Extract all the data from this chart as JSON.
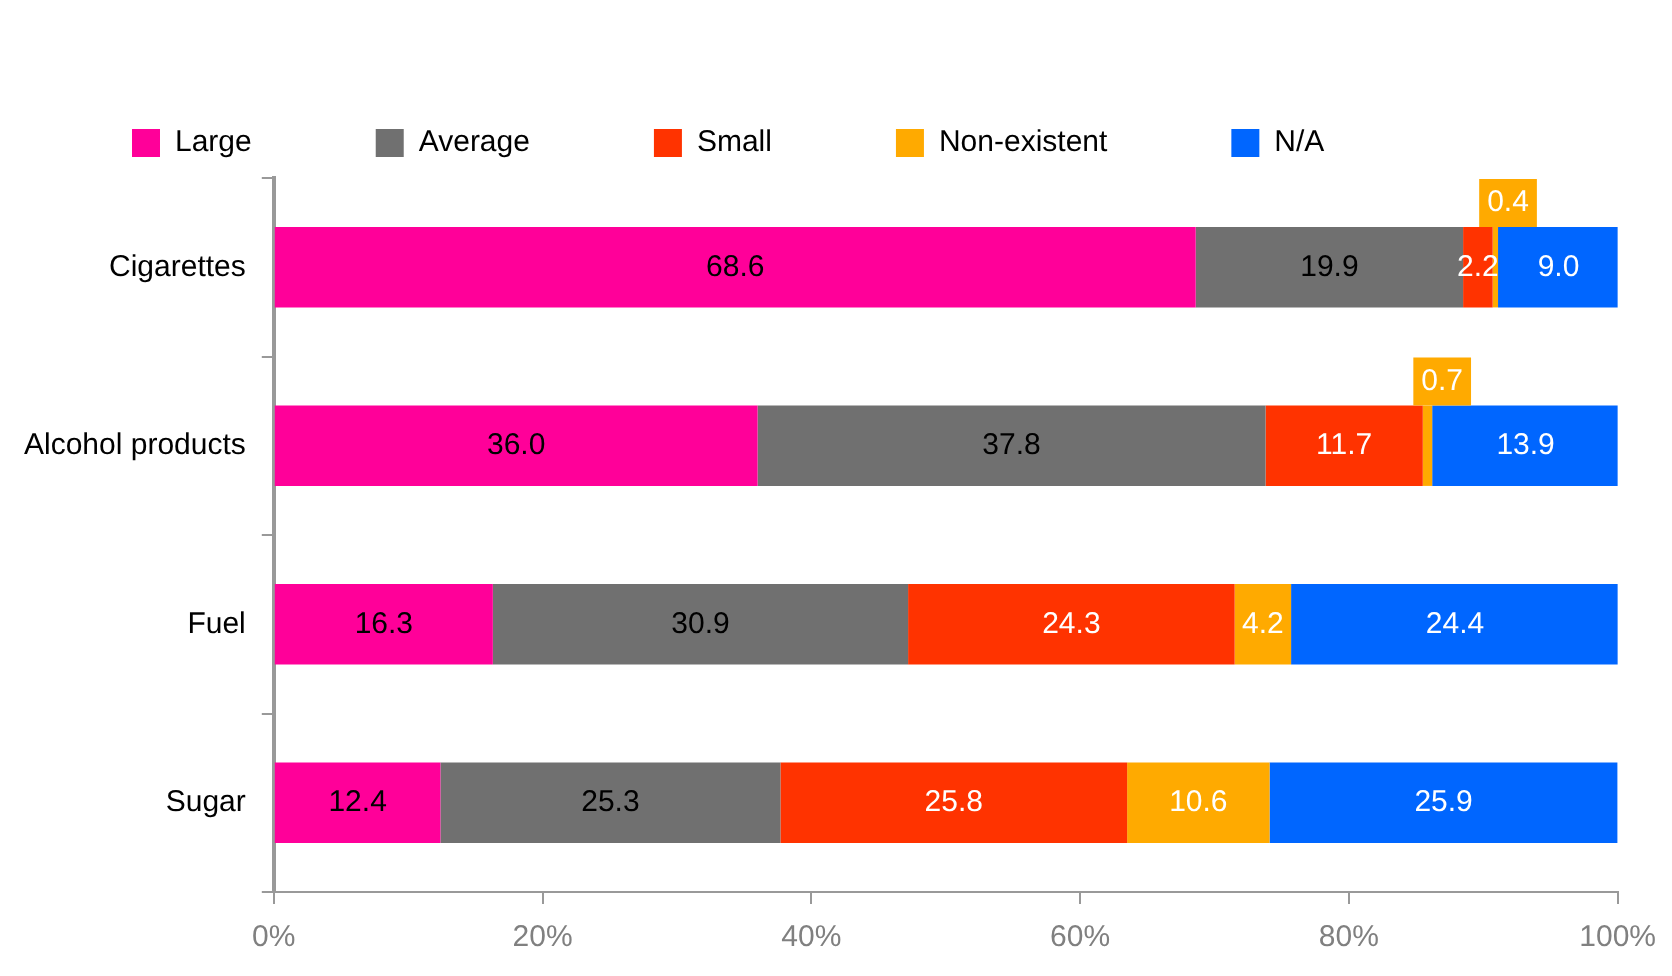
{
  "chart_data": {
    "type": "bar",
    "orientation": "horizontal",
    "stacked": true,
    "categories": [
      "Cigarettes",
      "Alcohol products",
      "Fuel",
      "Sugar"
    ],
    "series": [
      {
        "name": "Large",
        "color": "#ff0099",
        "values": [
          68.6,
          36.0,
          16.3,
          12.4
        ],
        "value_labels": [
          "68.6",
          "36.0",
          "16.3",
          "12.4"
        ]
      },
      {
        "name": "Average",
        "color": "#707070",
        "values": [
          19.9,
          37.8,
          30.9,
          25.3
        ],
        "value_labels": [
          "19.9",
          "37.8",
          "30.9",
          "25.3"
        ]
      },
      {
        "name": "Small",
        "color": "#ff3300",
        "values": [
          2.2,
          11.7,
          24.3,
          25.8
        ],
        "value_labels": [
          "2.2",
          "11.7",
          "24.3",
          "25.8"
        ]
      },
      {
        "name": "Non-existent",
        "color": "#ffaa00",
        "values": [
          0.4,
          0.7,
          4.2,
          10.6
        ],
        "value_labels": [
          "0.4",
          "0.7",
          "4.2",
          "10.6"
        ]
      },
      {
        "name": "N/A",
        "color": "#0066ff",
        "values": [
          9.0,
          13.9,
          24.4,
          25.9
        ],
        "value_labels": [
          "9.0",
          "13.9",
          "24.4",
          "25.9"
        ]
      }
    ],
    "xlim": [
      0,
      100
    ],
    "xticks": [
      {
        "value": 0,
        "label": "0%"
      },
      {
        "value": 20,
        "label": "20%"
      },
      {
        "value": 40,
        "label": "40%"
      },
      {
        "value": 60,
        "label": "60%"
      },
      {
        "value": 80,
        "label": "80%"
      },
      {
        "value": 100,
        "label": "100%"
      }
    ],
    "grid": false,
    "legend": "top"
  }
}
